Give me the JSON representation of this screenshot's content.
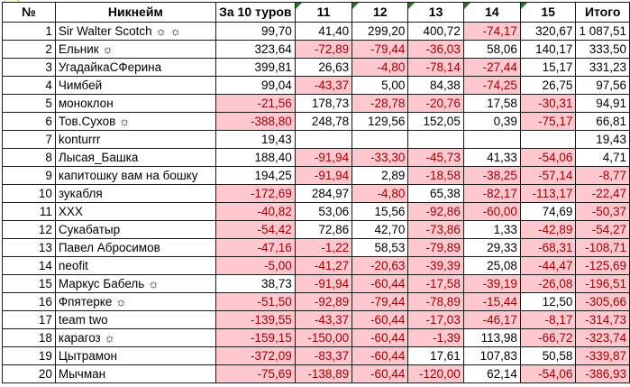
{
  "colors": {
    "pink": "#FFC7CE",
    "negtext": "#9C0006",
    "border": "#1a1a1a",
    "triangle": "#1f7a1f",
    "bg": "#ffffff"
  },
  "table": {
    "headers": [
      {
        "label": "№",
        "marker": false
      },
      {
        "label": "Никнейм",
        "marker": false
      },
      {
        "label": "За 10 туров",
        "marker": false
      },
      {
        "label": "11",
        "marker": true
      },
      {
        "label": "12",
        "marker": true
      },
      {
        "label": "13",
        "marker": true
      },
      {
        "label": "14",
        "marker": true
      },
      {
        "label": "15",
        "marker": true
      },
      {
        "label": "Итого",
        "marker": false
      }
    ],
    "rows": [
      {
        "num": "1",
        "nickname": "Sir Walter Scotch ☼ ☼",
        "values": [
          "99,70",
          "41,40",
          "299,20",
          "400,72",
          "-74,17",
          "320,67",
          "1 087,51"
        ]
      },
      {
        "num": "2",
        "nickname": "Ельник ☼",
        "values": [
          "323,64",
          "-72,89",
          "-79,44",
          "-36,03",
          "58,06",
          "140,17",
          "333,50"
        ]
      },
      {
        "num": "3",
        "nickname": "УгадайкаСФерина",
        "values": [
          "399,81",
          "26,63",
          "-4,80",
          "-78,14",
          "-27,44",
          "15,17",
          "331,23"
        ]
      },
      {
        "num": "4",
        "nickname": "Чимбей",
        "values": [
          "99,04",
          "-43,37",
          "5,00",
          "84,38",
          "-74,25",
          "26,75",
          "97,56"
        ]
      },
      {
        "num": "5",
        "nickname": "моноклон",
        "values": [
          "-21,56",
          "178,73",
          "-28,78",
          "-20,76",
          "17,58",
          "-30,31",
          "94,91"
        ]
      },
      {
        "num": "6",
        "nickname": "Тов.Сухов ☼",
        "values": [
          "-388,80",
          "248,78",
          "129,56",
          "152,05",
          "0,39",
          "-75,17",
          "66,81"
        ]
      },
      {
        "num": "7",
        "nickname": "konturrr",
        "values": [
          "19,43",
          "",
          "",
          "",
          "",
          "",
          "19,43"
        ]
      },
      {
        "num": "8",
        "nickname": "Лысая_Башка",
        "values": [
          "188,40",
          "-91,94",
          "-33,30",
          "-45,73",
          "41,33",
          "-54,06",
          "4,71"
        ]
      },
      {
        "num": "9",
        "nickname": "капитошку вам на бошку",
        "values": [
          "194,25",
          "-91,94",
          "2,89",
          "-18,58",
          "-38,25",
          "-57,14",
          "-8,77"
        ]
      },
      {
        "num": "10",
        "nickname": "зукабля",
        "values": [
          "-172,69",
          "284,97",
          "-4,80",
          "65,38",
          "-82,17",
          "-113,17",
          "-22,47"
        ]
      },
      {
        "num": "11",
        "nickname": "XXX",
        "values": [
          "-40,82",
          "53,06",
          "15,56",
          "-92,86",
          "-60,00",
          "74,69",
          "-50,37"
        ]
      },
      {
        "num": "12",
        "nickname": "Сукабатыр",
        "values": [
          "-54,42",
          "72,86",
          "42,70",
          "-73,86",
          "1,33",
          "-42,89",
          "-54,27"
        ]
      },
      {
        "num": "13",
        "nickname": "Павел Абросимов",
        "values": [
          "-47,16",
          "-1,22",
          "58,53",
          "-79,89",
          "29,33",
          "-68,31",
          "-108,71"
        ]
      },
      {
        "num": "14",
        "nickname": "neofit",
        "values": [
          "-5,00",
          "-41,27",
          "-20,63",
          "-39,39",
          "25,08",
          "-44,47",
          "-125,69"
        ]
      },
      {
        "num": "15",
        "nickname": "Маркус Бабель ☼",
        "values": [
          "38,73",
          "-91,94",
          "-60,44",
          "-17,58",
          "-39,19",
          "-26,08",
          "-196,51"
        ]
      },
      {
        "num": "16",
        "nickname": "Фпятерке ☼",
        "values": [
          "-51,50",
          "-92,89",
          "-79,44",
          "-78,89",
          "-15,44",
          "12,50",
          "-305,66"
        ]
      },
      {
        "num": "17",
        "nickname": "team two",
        "values": [
          "-139,55",
          "-43,37",
          "-60,44",
          "-17,03",
          "-46,17",
          "-8,17",
          "-314,73"
        ]
      },
      {
        "num": "18",
        "nickname": "карагоз ☼",
        "values": [
          "-159,15",
          "-150,00",
          "-60,44",
          "-1,39",
          "113,98",
          "-66,72",
          "-323,74"
        ]
      },
      {
        "num": "19",
        "nickname": "Цытрамон",
        "values": [
          "-372,09",
          "-83,37",
          "-60,44",
          "17,61",
          "107,83",
          "50,58",
          "-339,87"
        ]
      },
      {
        "num": "20",
        "nickname": "Мычман",
        "values": [
          "-75,69",
          "-138,89",
          "-60,44",
          "-120,00",
          "62,14",
          "-54,06",
          "-386,93"
        ]
      }
    ]
  }
}
